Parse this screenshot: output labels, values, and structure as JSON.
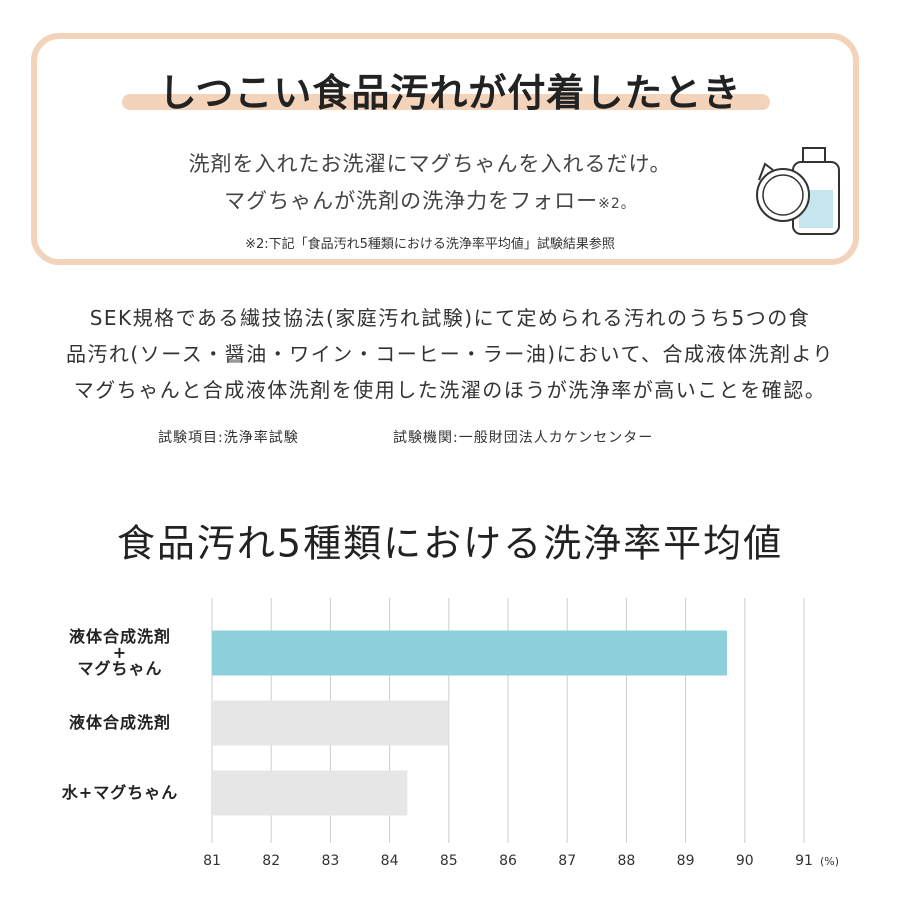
{
  "header": {
    "title": "しつこい食品汚れが付着したとき",
    "line1": "洗剤を入れたお洗濯にマグちゃんを入れるだけ。",
    "line2": "マグちゃんが洗剤の洗浄力をフォロー",
    "line2_note": "※2。",
    "note": "※2:下記「食品汚れ5種類における洗浄率平均値」試験結果参照"
  },
  "body": {
    "lines": [
      "SEK規格である繊技協法(家庭汚れ試験)にて定められる汚れのうち5つの食",
      "品汚れ(ソース・醤油・ワイン・コーヒー・ラー油)において、合成液体洗剤より",
      "マグちゃんと合成液体洗剤を使用した洗濯のほうが洗浄率が高いことを確認。"
    ],
    "test_item": "試験項目:洗浄率試験",
    "test_org": "試験機関:一般財団法人カケンセンター"
  },
  "chart_data": {
    "type": "bar",
    "orientation": "horizontal",
    "title": "食品汚れ5種類における洗浄率平均値",
    "categories": [
      "液体合成洗剤\n+\nマグちゃん",
      "液体合成洗剤",
      "水+マグちゃん"
    ],
    "values": [
      89.7,
      85.0,
      84.3
    ],
    "colors": [
      "#8dd0dc",
      "#e6e6e6",
      "#e6e6e6"
    ],
    "xlim": [
      81,
      91
    ],
    "xticks": [
      81,
      82,
      83,
      84,
      85,
      86,
      87,
      88,
      89,
      90,
      91
    ],
    "x_label": "(%)",
    "grid": true
  }
}
